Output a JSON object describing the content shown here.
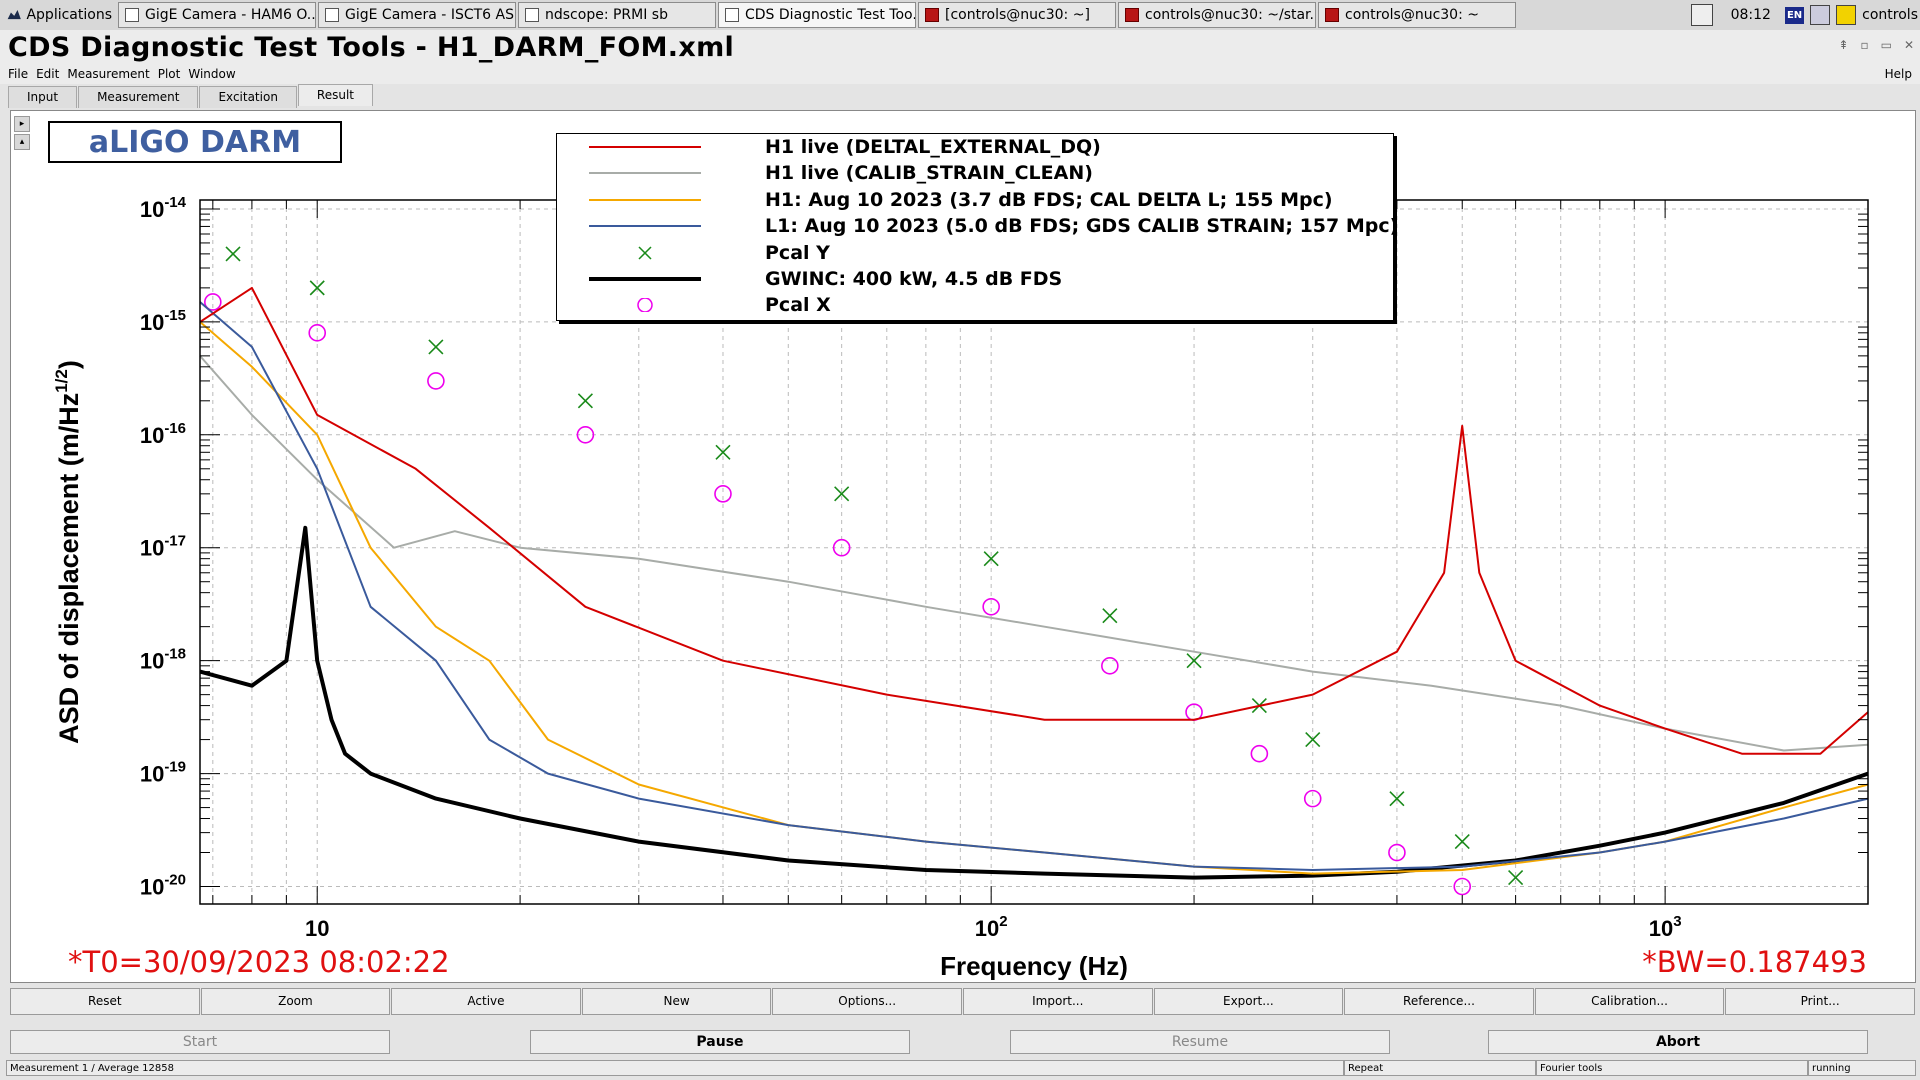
{
  "taskbar": {
    "apps_label": "Applications",
    "tasks": [
      {
        "label": "GigE Camera - HAM6 O...",
        "icon": "camera-window-icon"
      },
      {
        "label": "GigE Camera - ISCT6 AS...",
        "icon": "camera-window-icon"
      },
      {
        "label": "ndscope: PRMI sb",
        "icon": "window-icon"
      },
      {
        "label": "CDS Diagnostic Test Too...",
        "icon": "window-icon"
      },
      {
        "label": "[controls@nuc30: ~]",
        "icon": "terminal-icon"
      },
      {
        "label": "controls@nuc30: ~/star...",
        "icon": "terminal-icon"
      },
      {
        "label": "controls@nuc30: ~",
        "icon": "terminal-icon"
      }
    ],
    "clock": "08:12",
    "keyboard_layout": "EN",
    "user": "controls"
  },
  "window": {
    "title": "CDS Diagnostic Test Tools - H1_DARM_FOM.xml"
  },
  "menubar": {
    "items": [
      "File",
      "Edit",
      "Measurement",
      "Plot",
      "Window"
    ],
    "help": "Help"
  },
  "tabs": [
    "Input",
    "Measurement",
    "Excitation",
    "Result"
  ],
  "plot_badge": "aLIGO DARM",
  "t0": "*T0=30/09/2023 08:02:22",
  "bw": "*BW=0.187493",
  "legend": [
    {
      "label": "H1 live (DELTAL_EXTERNAL_DQ)",
      "color": "#d40000",
      "style": "line"
    },
    {
      "label": "H1 live (CALIB_STRAIN_CLEAN)",
      "color": "#a8aca8",
      "style": "line"
    },
    {
      "label": "H1: Aug 10 2023 (3.7 dB FDS; CAL DELTA L; 155 Mpc)",
      "color": "#f5a800",
      "style": "line"
    },
    {
      "label": "L1: Aug 10 2023 (5.0 dB FDS; GDS CALIB STRAIN; 157 Mpc)",
      "color": "#3a5a9c",
      "style": "line"
    },
    {
      "label": "Pcal Y",
      "color": "#1a8a1a",
      "style": "cross"
    },
    {
      "label": "GWINC: 400 kW, 4.5 dB FDS",
      "color": "#000000",
      "style": "thick"
    },
    {
      "label": "Pcal X",
      "color": "#ee00ee",
      "style": "circle"
    }
  ],
  "chart_data": {
    "type": "line",
    "xlabel": "Frequency (Hz)",
    "ylabel": "ASD of displacement (m/Hz^1/2)",
    "x_scale": "log",
    "y_scale": "log",
    "xlim": [
      6.7,
      2000
    ],
    "ylim": [
      7e-21,
      1.2e-14
    ],
    "x_ticks": [
      "10",
      "10^2",
      "10^3"
    ],
    "y_ticks": [
      "10^-14",
      "10^-15",
      "10^-16",
      "10^-17",
      "10^-18",
      "10^-19",
      "10^-20"
    ],
    "grid": true,
    "series": [
      {
        "name": "H1 live (DELTAL_EXTERNAL_DQ)",
        "color": "#d40000",
        "x": [
          6.7,
          8,
          10,
          14,
          18,
          25,
          40,
          70,
          120,
          200,
          300,
          400,
          470,
          500,
          530,
          600,
          800,
          1000,
          1300,
          1700,
          2000
        ],
        "y": [
          1e-15,
          2e-15,
          1.5e-16,
          5e-17,
          1.5e-17,
          3e-18,
          1e-18,
          5e-19,
          3e-19,
          3e-19,
          5e-19,
          1.2e-18,
          6e-18,
          1.2e-16,
          6e-18,
          1e-18,
          4e-19,
          2.5e-19,
          1.5e-19,
          1.5e-19,
          3.5e-19
        ]
      },
      {
        "name": "H1 live (CALIB_STRAIN_CLEAN)",
        "color": "#a8aca8",
        "x": [
          6.7,
          8,
          10,
          13,
          16,
          20,
          30,
          50,
          80,
          120,
          200,
          300,
          450,
          700,
          1000,
          1500,
          2000
        ],
        "y": [
          5e-16,
          1.5e-16,
          4e-17,
          1e-17,
          1.4e-17,
          1e-17,
          8e-18,
          5e-18,
          3e-18,
          2e-18,
          1.2e-18,
          8e-19,
          6e-19,
          4e-19,
          2.5e-19,
          1.6e-19,
          1.8e-19
        ]
      },
      {
        "name": "H1: Aug 10 2023 (3.7 dB FDS; CAL DELTA L; 155 Mpc)",
        "color": "#f5a800",
        "x": [
          6.7,
          8,
          10,
          12,
          15,
          18,
          22,
          30,
          50,
          80,
          120,
          200,
          300,
          500,
          800,
          1000,
          1500,
          2000
        ],
        "y": [
          1e-15,
          4e-16,
          1e-16,
          1e-17,
          2e-18,
          1e-18,
          2e-19,
          8e-20,
          3.5e-20,
          2.5e-20,
          2e-20,
          1.5e-20,
          1.3e-20,
          1.4e-20,
          2e-20,
          2.5e-20,
          5e-20,
          8e-20
        ]
      },
      {
        "name": "L1: Aug 10 2023 (5.0 dB FDS; GDS CALIB STRAIN; 157 Mpc)",
        "color": "#3a5a9c",
        "x": [
          6.7,
          8,
          10,
          12,
          15,
          18,
          22,
          30,
          50,
          80,
          120,
          200,
          300,
          500,
          800,
          1000,
          1500,
          2000
        ],
        "y": [
          1.5e-15,
          6e-16,
          5e-17,
          3e-18,
          1e-18,
          2e-19,
          1e-19,
          6e-20,
          3.5e-20,
          2.5e-20,
          2e-20,
          1.5e-20,
          1.4e-20,
          1.5e-20,
          2e-20,
          2.5e-20,
          4e-20,
          6e-20
        ]
      },
      {
        "name": "GWINC: 400 kW, 4.5 dB FDS",
        "color": "#000000",
        "x": [
          6.7,
          8,
          9,
          9.6,
          10,
          10.5,
          11,
          12,
          15,
          20,
          30,
          50,
          80,
          120,
          200,
          300,
          400,
          600,
          800,
          1000,
          1500,
          2000
        ],
        "y": [
          8e-19,
          6e-19,
          1e-18,
          1.5e-17,
          1e-18,
          3e-19,
          1.5e-19,
          1e-19,
          6e-20,
          4e-20,
          2.5e-20,
          1.7e-20,
          1.4e-20,
          1.3e-20,
          1.2e-20,
          1.25e-20,
          1.35e-20,
          1.7e-20,
          2.3e-20,
          3e-20,
          5.5e-20,
          1e-19
        ]
      },
      {
        "name": "Pcal Y",
        "color": "#1a8a1a",
        "marker": "cross",
        "x": [
          7.5,
          10,
          15,
          25,
          40,
          60,
          100,
          150,
          200,
          250,
          300,
          400,
          500,
          600
        ],
        "y": [
          4e-15,
          2e-15,
          6e-16,
          2e-16,
          7e-17,
          3e-17,
          8e-18,
          2.5e-18,
          1e-18,
          4e-19,
          2e-19,
          6e-20,
          2.5e-20,
          1.2e-20
        ]
      },
      {
        "name": "Pcal X",
        "color": "#ee00ee",
        "marker": "circle",
        "x": [
          7,
          10,
          15,
          25,
          40,
          60,
          100,
          150,
          200,
          250,
          300,
          400,
          500
        ],
        "y": [
          1.5e-15,
          8e-16,
          3e-16,
          1e-16,
          3e-17,
          1e-17,
          3e-18,
          9e-19,
          3.5e-19,
          1.5e-19,
          6e-20,
          2e-20,
          1e-20
        ]
      }
    ]
  },
  "plot_buttons": [
    "Reset",
    "Zoom",
    "Active",
    "New",
    "Options...",
    "Import...",
    "Export...",
    "Reference...",
    "Calibration...",
    "Print..."
  ],
  "control_buttons": [
    "Start",
    "Pause",
    "Resume",
    "Abort"
  ],
  "status": {
    "measurement": "Measurement 1 / Average 12858",
    "repeat": "Repeat",
    "tool": "Fourier tools",
    "state": "running"
  }
}
